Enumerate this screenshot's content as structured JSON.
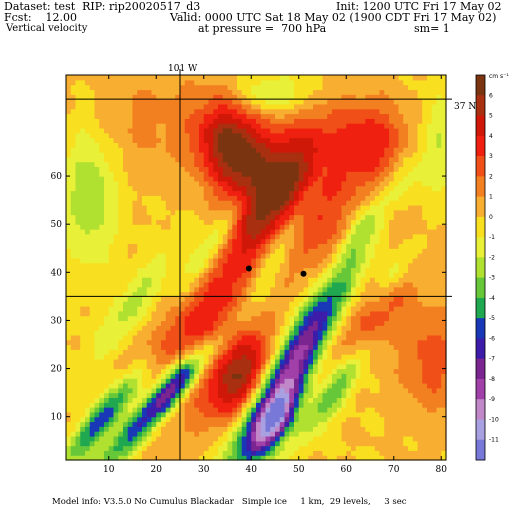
{
  "header": {
    "dataset": "Dataset: test  RIP: rip20020517_d3",
    "init": "Init: 1200 UTC Fri 17 May 02",
    "fcst": "Fcst:    12.00",
    "valid": "Valid: 0000 UTC Sat 18 May 02 (1900 CDT Fri 17 May 02)",
    "field": "Vertical velocity",
    "pressure": "at pressure =  700 hPa",
    "smoothing": "sm= 1"
  },
  "map_labels": {
    "longitude": "101 W",
    "latitude": "37 N"
  },
  "footer": "Model info: V3.5.0 No Cumulus Blackadar   Simple ice     1 km,  29 levels,     3 sec",
  "chart_data": {
    "type": "heatmap",
    "title": "Vertical velocity",
    "units": "cm s⁻¹",
    "xlim": [
      1,
      81
    ],
    "ylim": [
      1,
      81
    ],
    "x_ticks": [
      10,
      20,
      30,
      40,
      50,
      60,
      70,
      80
    ],
    "y_ticks": [
      10,
      20,
      30,
      40,
      50,
      60
    ],
    "reference_lines": {
      "longitude_101W_x": 25.0,
      "latitude_37N_y": [
        76.0,
        35.0
      ]
    },
    "stations": [
      {
        "x": 39.5,
        "y": 40.8
      },
      {
        "x": 51.0,
        "y": 39.7
      }
    ],
    "colorbar": {
      "levels": [
        6,
        5,
        4,
        3,
        2,
        1,
        0,
        -1,
        -2,
        -3,
        -4,
        -5,
        -6,
        -7,
        -8,
        -9,
        -10,
        -11
      ],
      "colors": [
        "#7a3410",
        "#a83010",
        "#d01808",
        "#f02010",
        "#f05018",
        "#f38020",
        "#f8ae30",
        "#f8e020",
        "#e8f038",
        "#b0e030",
        "#66c838",
        "#20a850",
        "#1838b8",
        "#3c1ca8",
        "#7a2590",
        "#a040a8",
        "#c088c8",
        "#a8a0e0",
        "#7878d8"
      ]
    },
    "features": [
      {
        "kind": "updraft",
        "x": 36,
        "y": 66,
        "sx": 5,
        "sy": 7,
        "theta": 0.3,
        "amp": 6.5
      },
      {
        "kind": "updraft",
        "x": 50,
        "y": 58,
        "sx": 7,
        "sy": 10,
        "theta": -0.3,
        "amp": 4.5
      },
      {
        "kind": "updraft",
        "x": 41,
        "y": 52,
        "sx": 4,
        "sy": 12,
        "theta": -0.5,
        "amp": 3.5
      },
      {
        "kind": "updraft",
        "x": 65,
        "y": 67,
        "sx": 6,
        "sy": 6,
        "theta": 0.0,
        "amp": 3.5
      },
      {
        "kind": "updraft",
        "x": 38,
        "y": 18,
        "sx": 4,
        "sy": 7,
        "theta": -0.5,
        "amp": 5.5
      },
      {
        "kind": "updraft",
        "x": 28,
        "y": 25,
        "sx": 6,
        "sy": 12,
        "theta": -0.6,
        "amp": 4.0
      },
      {
        "kind": "updraft",
        "x": 56,
        "y": 27,
        "sx": 3,
        "sy": 10,
        "theta": -0.6,
        "amp": 3.5
      },
      {
        "kind": "updraft",
        "x": 66,
        "y": 30,
        "sx": 3,
        "sy": 8,
        "theta": -0.6,
        "amp": 3.0
      },
      {
        "kind": "updraft",
        "x": 78,
        "y": 22,
        "sx": 5,
        "sy": 8,
        "theta": 0.0,
        "amp": 2.5
      },
      {
        "kind": "updraft",
        "x": 72,
        "y": 52,
        "sx": 5,
        "sy": 6,
        "theta": 0.0,
        "amp": 2.0
      },
      {
        "kind": "updraft",
        "x": 60,
        "y": 42,
        "sx": 6,
        "sy": 7,
        "theta": 0.0,
        "amp": 1.5
      },
      {
        "kind": "updraft",
        "x": 18,
        "y": 72,
        "sx": 9,
        "sy": 8,
        "theta": 0.0,
        "amp": 1.2
      },
      {
        "kind": "downdraft",
        "x": 50,
        "y": 22,
        "sx": 3.2,
        "sy": 18,
        "theta": -0.55,
        "amp": -10.5
      },
      {
        "kind": "downdraft",
        "x": 45,
        "y": 9,
        "sx": 2.2,
        "sy": 5,
        "theta": -0.5,
        "amp": -7.0
      },
      {
        "kind": "downdraft",
        "x": 20,
        "y": 12,
        "sx": 2.0,
        "sy": 13,
        "theta": -0.75,
        "amp": -7.0
      },
      {
        "kind": "downdraft",
        "x": 9,
        "y": 10,
        "sx": 2.0,
        "sy": 9,
        "theta": -0.7,
        "amp": -6.0
      },
      {
        "kind": "downdraft",
        "x": 24,
        "y": 18,
        "sx": 2.5,
        "sy": 6,
        "theta": -0.7,
        "amp": -4.0
      },
      {
        "kind": "downdraft",
        "x": 58,
        "y": 16,
        "sx": 2.0,
        "sy": 9,
        "theta": -0.6,
        "amp": -4.0
      },
      {
        "kind": "downdraft",
        "x": 47,
        "y": 47,
        "sx": 2.0,
        "sy": 12,
        "theta": -0.5,
        "amp": -3.0
      },
      {
        "kind": "downdraft",
        "x": 32,
        "y": 46,
        "sx": 2.0,
        "sy": 10,
        "theta": -0.6,
        "amp": -3.0
      },
      {
        "kind": "downdraft",
        "x": 6,
        "y": 56,
        "sx": 4,
        "sy": 10,
        "theta": 0.0,
        "amp": -3.0
      },
      {
        "kind": "downdraft",
        "x": 45,
        "y": 77,
        "sx": 6,
        "sy": 3,
        "theta": 0.0,
        "amp": -2.5
      },
      {
        "kind": "downdraft",
        "x": 70,
        "y": 40,
        "sx": 2.0,
        "sy": 8,
        "theta": -0.6,
        "amp": -2.5
      },
      {
        "kind": "downdraft",
        "x": 64,
        "y": 50,
        "sx": 2.0,
        "sy": 7,
        "theta": -0.6,
        "amp": -2.5
      },
      {
        "kind": "downdraft",
        "x": 73,
        "y": 58,
        "sx": 3,
        "sy": 5,
        "theta": 0.0,
        "amp": -2.0
      },
      {
        "kind": "downdraft",
        "x": 79,
        "y": 66,
        "sx": 2.5,
        "sy": 8,
        "theta": 0.0,
        "amp": -2.0
      },
      {
        "kind": "downdraft",
        "x": 15,
        "y": 33,
        "sx": 2.5,
        "sy": 10,
        "theta": -0.6,
        "amp": -2.5
      }
    ]
  }
}
